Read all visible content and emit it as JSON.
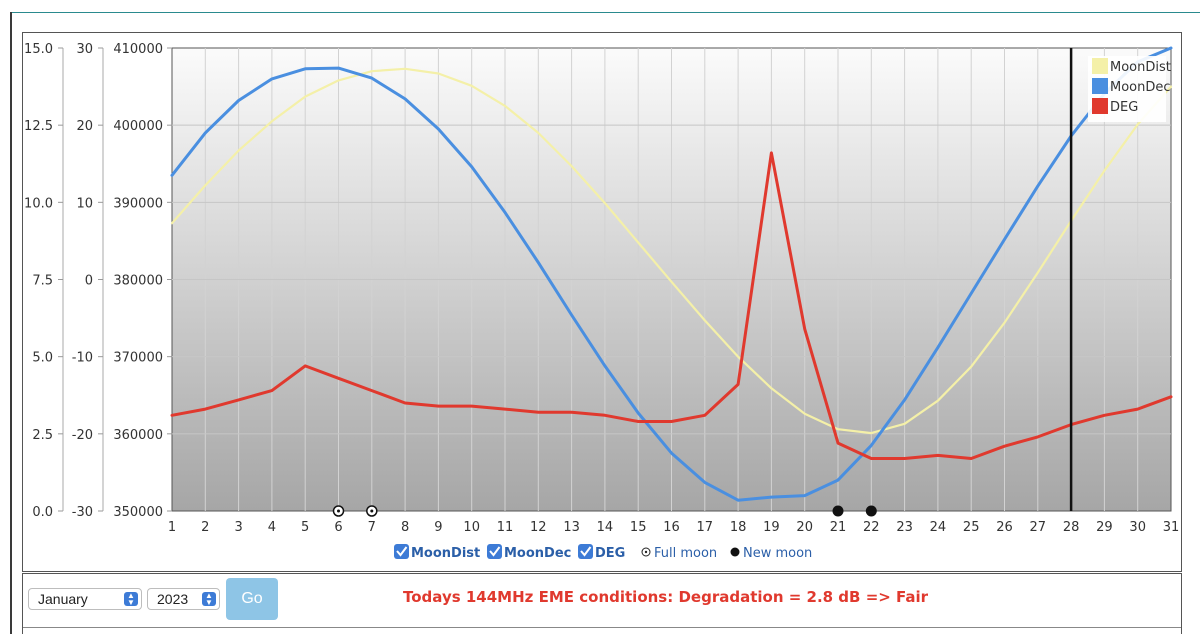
{
  "chart_data": {
    "type": "line",
    "title": "",
    "x": [
      1,
      2,
      3,
      4,
      5,
      6,
      7,
      8,
      9,
      10,
      11,
      12,
      13,
      14,
      15,
      16,
      17,
      18,
      19,
      20,
      21,
      22,
      23,
      24,
      25,
      26,
      27,
      28,
      29,
      30,
      31
    ],
    "x_tick_labels": [
      "1",
      "2",
      "3",
      "4",
      "5",
      "6",
      "7",
      "8",
      "9",
      "10",
      "11",
      "12",
      "13",
      "14",
      "15",
      "16",
      "17",
      "18",
      "19",
      "20",
      "21",
      "22",
      "23",
      "24",
      "25",
      "26",
      "27",
      "28",
      "29",
      "30",
      "31"
    ],
    "axes": {
      "deg": {
        "range": [
          0,
          15
        ],
        "ticks": [
          "0.0",
          "2.5",
          "5.0",
          "7.5",
          "10.0",
          "12.5",
          "15.0"
        ]
      },
      "dec": {
        "range": [
          -30,
          30
        ],
        "ticks": [
          "-30",
          "-20",
          "-10",
          "0",
          "10",
          "20",
          "30"
        ]
      },
      "dist": {
        "range": [
          350000,
          410000
        ],
        "ticks": [
          "350000",
          "360000",
          "370000",
          "380000",
          "390000",
          "400000",
          "410000"
        ]
      }
    },
    "series": [
      {
        "name": "MoonDist",
        "color": "#f4f0a8",
        "axis": "dist",
        "values": [
          387300,
          392200,
          396700,
          400500,
          403700,
          405800,
          407000,
          407300,
          406700,
          405100,
          402500,
          399000,
          394700,
          389900,
          384800,
          379700,
          374700,
          370000,
          365900,
          362600,
          360600,
          360100,
          361300,
          364300,
          368700,
          374400,
          380900,
          387600,
          394100,
          400100,
          405000
        ]
      },
      {
        "name": "MoonDec",
        "color": "#4a8fe0",
        "axis": "dec",
        "values": [
          13.5,
          19.0,
          23.2,
          26.0,
          27.3,
          27.4,
          26.1,
          23.4,
          19.5,
          14.6,
          8.7,
          2.2,
          -4.6,
          -11.2,
          -17.3,
          -22.5,
          -26.3,
          -28.6,
          -28.2,
          -28.0,
          -26.0,
          -21.5,
          -15.6,
          -8.8,
          -1.8,
          5.2,
          12.1,
          18.6,
          24.1,
          28.2,
          30.0
        ]
      },
      {
        "name": "DEG",
        "color": "#e0392e",
        "axis": "deg",
        "values": [
          3.1,
          3.3,
          3.6,
          3.9,
          4.7,
          4.3,
          3.9,
          3.5,
          3.4,
          3.4,
          3.3,
          3.2,
          3.2,
          3.1,
          2.9,
          2.9,
          3.1,
          4.1,
          11.6,
          5.9,
          2.2,
          1.7,
          1.7,
          1.8,
          1.7,
          2.1,
          2.4,
          2.8,
          3.1,
          3.3,
          3.7
        ]
      }
    ],
    "today_day": 28,
    "full_moon_days": [
      6,
      7
    ],
    "new_moon_days": [
      21,
      22
    ],
    "legend": [
      "MoonDist",
      "MoonDec",
      "DEG"
    ],
    "legend_position": "top-right",
    "grid": true
  },
  "checkbox_legend": {
    "items": [
      "MoonDist",
      "MoonDec",
      "DEG"
    ],
    "full_moon_label": "Full moon",
    "new_moon_label": "New moon"
  },
  "controls": {
    "month": "January",
    "year": "2023",
    "go_label": "Go"
  },
  "status_text": "Todays 144MHz EME conditions: Degradation = 2.8 dB => Fair",
  "colors": {
    "accent": "#2a8a8e",
    "status": "#e0392e",
    "go_button": "#8ec5e6",
    "checkbox": "#3d7bd6"
  }
}
